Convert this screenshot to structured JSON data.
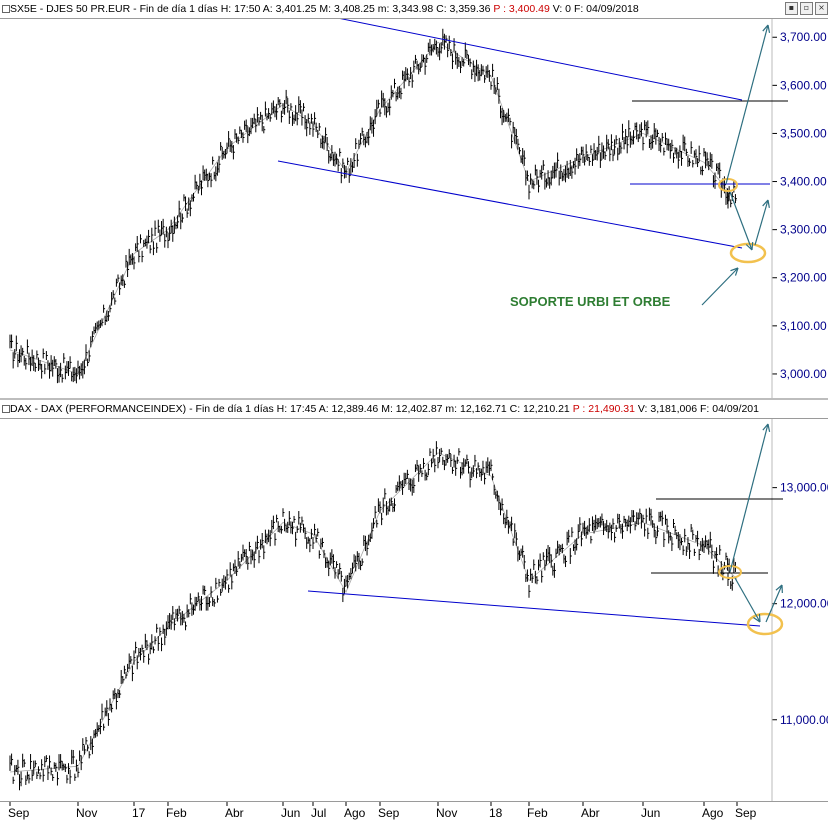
{
  "top": {
    "symbol": "SX5E - DJES 50 PR.EUR",
    "freq": "Fin de día 1 días",
    "h": "H: 17:50",
    "a": "A: 3,401.25",
    "m": "M: 3,408.25",
    "mn": "m: 3,343.98",
    "c": "C: 3,359.36",
    "p": "P : 3,400.49",
    "v": "V: 0",
    "f": "F: 04/09/2018",
    "annotation": "SOPORTE URBI ET ORBE"
  },
  "bottom": {
    "symbol": "DAX - DAX (PERFORMANCEINDEX)",
    "freq": "Fin de día 1 días",
    "h": "H: 17:45",
    "a": "A: 12,389.46",
    "m": "M: 12,402.87",
    "mn": "m: 12,162.71",
    "c": "C: 12,210.21",
    "p": "P : 21,490.31",
    "v": "V: 3,181,006",
    "f": "F: 04/09/201"
  },
  "window_buttons": [
    "▪",
    "▫",
    "×"
  ],
  "colors": {
    "price": "#000000",
    "channel": "#0000cc",
    "level": "#000000",
    "arrow": "#2e6f80",
    "circle": "#f2c14e",
    "axis_text": "#00008b",
    "annotation": "#2e7d32"
  },
  "chart_data": [
    {
      "type": "line",
      "series": [
        {
          "x": [
            "Sep",
            "Nov",
            "17",
            "Feb",
            "Abr",
            "Jun",
            "Jul",
            "Ago",
            "Sep",
            "Nov",
            "18",
            "Feb",
            "Abr",
            "Jun",
            "Ago",
            "Sep"
          ],
          "values": [
            3050,
            3000,
            3250,
            3300,
            3470,
            3560,
            3520,
            3420,
            3550,
            3690,
            3620,
            3400,
            3450,
            3500,
            3440,
            3360
          ]
        }
      ],
      "y_ticks": [
        "3,000.00",
        "3,100.00",
        "3,200.00",
        "3,300.00",
        "3,400.00",
        "3,500.00",
        "3,600.00",
        "3,700.00"
      ],
      "ylim": [
        2950,
        3740
      ]
    },
    {
      "type": "line",
      "series": [
        {
          "x": [
            "Sep",
            "Nov",
            "17",
            "Feb",
            "Abr",
            "Jun",
            "Jul",
            "Ago",
            "Sep",
            "Nov",
            "18",
            "Feb",
            "Abr",
            "Jun",
            "Ago",
            "Sep"
          ],
          "values": [
            10550,
            10600,
            11500,
            11800,
            12200,
            12700,
            12600,
            12100,
            12800,
            13300,
            13100,
            12200,
            12600,
            12700,
            12500,
            12210
          ]
        }
      ],
      "y_ticks": [
        "11,000.00",
        "12,000.00",
        "13,000.00"
      ],
      "ylim": [
        10300,
        13600
      ]
    }
  ],
  "x_axis": [
    "Sep",
    "Nov",
    "17",
    "Feb",
    "Abr",
    "Jun",
    "Jul",
    "Ago",
    "Sep",
    "Nov",
    "18",
    "Feb",
    "Abr",
    "Jun",
    "Ago",
    "Sep"
  ]
}
